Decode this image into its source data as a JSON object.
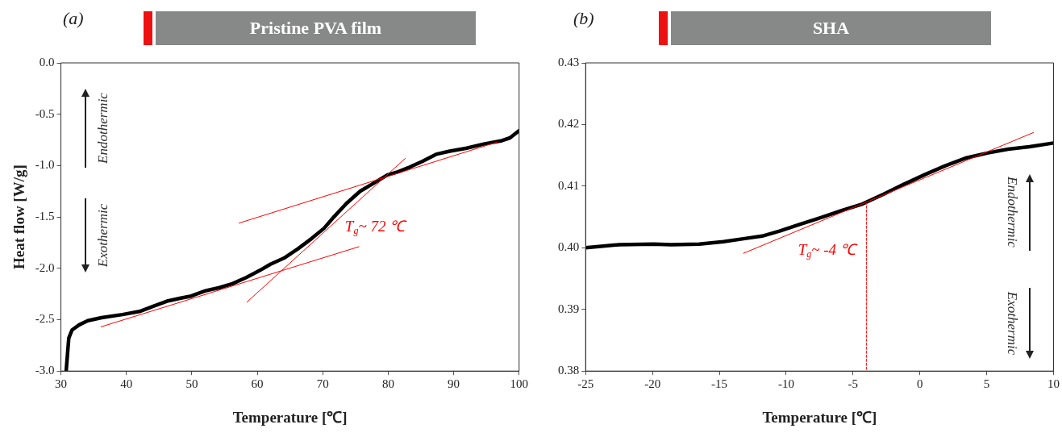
{
  "chart_data": [
    {
      "type": "line",
      "title": "Pristine PVA film",
      "xlabel": "Temperature [℃]",
      "ylabel": "Heat flow [W/g]",
      "annotations": [
        "(a)",
        "Endothermic",
        "Exothermic",
        "T$_{g}$~ 72 ℃"
      ],
      "series": [
        {
          "color": "#000000",
          "x": [
            30.8,
            31.2,
            31.7,
            32.8,
            34.1,
            36.2,
            39.4,
            42.0,
            44.1,
            46.2,
            48.3,
            49.9,
            52.0,
            54.1,
            56.2,
            58.3,
            60.4,
            62.0,
            64.1,
            66.2,
            68.3,
            70.2,
            71.7,
            73.6,
            75.7,
            77.8,
            79.9,
            81.5,
            83.1,
            85.2,
            87.3,
            89.4,
            92.0,
            94.6,
            97.2,
            98.6,
            100
          ],
          "values": [
            -3.0,
            -2.68,
            -2.6,
            -2.55,
            -2.51,
            -2.48,
            -2.45,
            -2.42,
            -2.37,
            -2.32,
            -2.29,
            -2.27,
            -2.22,
            -2.19,
            -2.15,
            -2.09,
            -2.02,
            -1.96,
            -1.9,
            -1.81,
            -1.71,
            -1.61,
            -1.5,
            -1.37,
            -1.25,
            -1.17,
            -1.09,
            -1.06,
            -1.02,
            -0.96,
            -0.89,
            -0.86,
            -0.83,
            -0.79,
            -0.76,
            -0.73,
            -0.66
          ]
        },
        {
          "type": "line",
          "color": "#ff0000",
          "x": [
            36.1,
            75.5
          ],
          "values": [
            -2.57,
            -1.79
          ]
        },
        {
          "type": "line",
          "color": "#ff0000",
          "x": [
            57.2,
            96.7
          ],
          "values": [
            -1.56,
            -0.77
          ]
        },
        {
          "type": "line",
          "color": "#ff0000",
          "x": [
            58.4,
            82.6
          ],
          "values": [
            -2.33,
            -0.93
          ]
        }
      ],
      "xlim": [
        30,
        100
      ],
      "xticks": [
        30,
        40,
        50,
        60,
        70,
        80,
        90,
        100
      ],
      "ylim": [
        -3,
        0
      ],
      "yticks": [
        {
          "value": 0,
          "label": "0.0"
        },
        -0.5,
        {
          "value": -1,
          "label": "-1.0"
        },
        -1.5,
        {
          "value": -2,
          "label": "-2.0"
        },
        -2.5,
        {
          "value": -3,
          "label": "-3.0"
        }
      ],
      "grid": false,
      "legend": false,
      "marker": "none"
    },
    {
      "type": "line",
      "title": "SHA",
      "xlabel": "Temperature [℃]",
      "annotations": [
        "(b)",
        "Endothermic",
        "Exothermic",
        "T$_{g}$~ -4 ℃"
      ],
      "series": [
        {
          "color": "#000000",
          "x": [
            -25,
            -22.5,
            -19.9,
            -18.6,
            -16.5,
            -14.7,
            -13.1,
            -11.8,
            -10.5,
            -9.0,
            -7.4,
            -5.9,
            -4.3,
            -2.7,
            -1.2,
            0.4,
            1.9,
            3.5,
            5.1,
            6.6,
            8.2,
            10
          ],
          "values": [
            0.4,
            0.4005,
            0.4006,
            0.4005,
            0.4006,
            0.401,
            0.4015,
            0.4019,
            0.4027,
            0.4038,
            0.4049,
            0.406,
            0.4071,
            0.4087,
            0.4103,
            0.4119,
            0.4133,
            0.4146,
            0.4154,
            0.416,
            0.4164,
            0.417
          ]
        },
        {
          "type": "line",
          "color": "#ff0000",
          "x": [
            -13.2,
            8.5
          ],
          "values": [
            0.3991,
            0.4187
          ]
        },
        {
          "type": "line",
          "color": "#ff0000",
          "line_style": "dashed",
          "x": [
            -4,
            -4
          ],
          "values": [
            0.38,
            0.4072
          ]
        }
      ],
      "xlim": [
        -25,
        10
      ],
      "xticks": [
        -25,
        -20,
        -15,
        -10,
        -5,
        0,
        5,
        10
      ],
      "ylim": [
        0.38,
        0.43
      ],
      "yticks": [
        0.43,
        0.42,
        0.41,
        {
          "value": 0.4,
          "label": "0.40"
        },
        0.39,
        0.38
      ],
      "grid": false,
      "legend": false,
      "marker": "none"
    }
  ]
}
